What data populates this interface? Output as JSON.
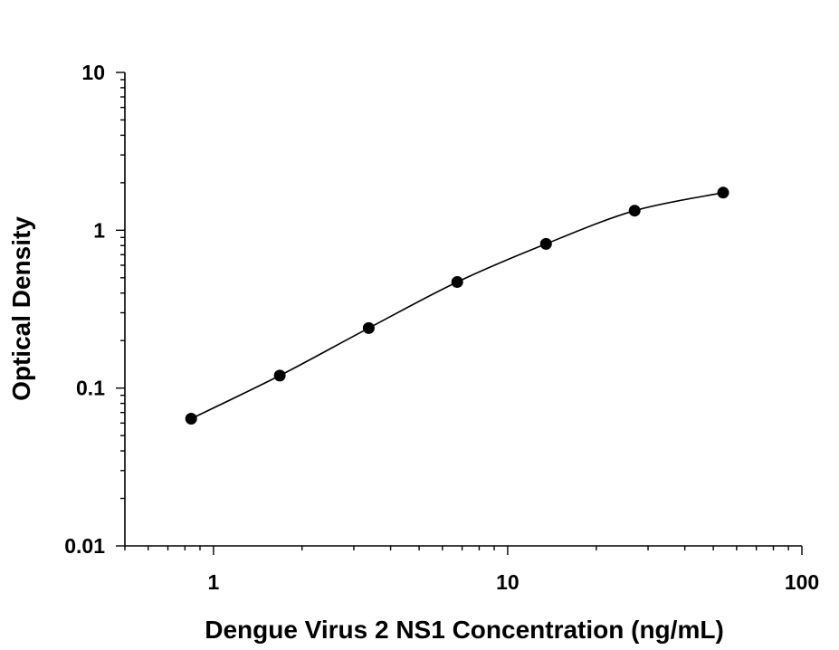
{
  "chart_data": {
    "type": "scatter",
    "title": "",
    "xlabel": "Dengue Virus 2 NS1 Concentration (ng/mL)",
    "ylabel": "Optical Density",
    "x_scale": "log",
    "y_scale": "log",
    "xlim": [
      0.5,
      100
    ],
    "ylim": [
      0.01,
      10
    ],
    "x_ticks": [
      {
        "value": 1,
        "label": "1"
      },
      {
        "value": 10,
        "label": "10"
      },
      {
        "value": 100,
        "label": "100"
      }
    ],
    "y_ticks": [
      {
        "value": 0.01,
        "label": "0.01"
      },
      {
        "value": 0.1,
        "label": "0.1"
      },
      {
        "value": 1,
        "label": "1"
      },
      {
        "value": 10,
        "label": "10"
      }
    ],
    "grid": false,
    "legend": "none",
    "fitted_curve": true,
    "series": [
      {
        "x": [
          0.84,
          1.68,
          3.37,
          6.74,
          13.5,
          27.0,
          54.0
        ],
        "y": [
          0.064,
          0.12,
          0.24,
          0.47,
          0.82,
          1.33,
          1.73
        ]
      }
    ],
    "colors": {
      "marker": "#000000",
      "curve": "#000000",
      "axis": "#000000"
    }
  }
}
